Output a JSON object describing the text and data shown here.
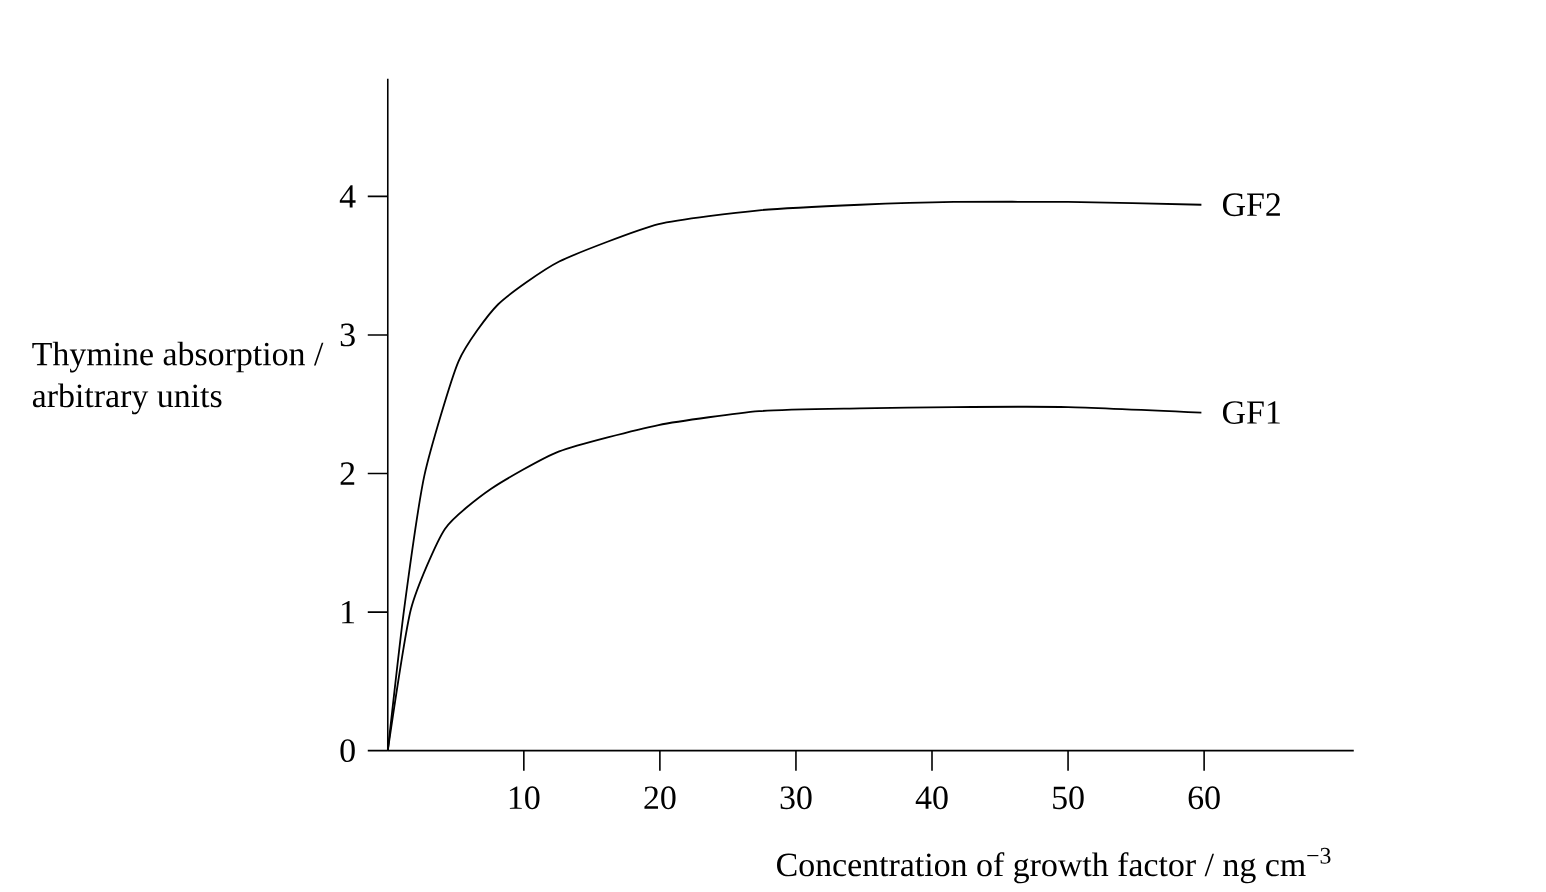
{
  "chart_data": {
    "type": "line",
    "xlabel": "Concentration of growth factor / ng cm$^{−3}$",
    "ylabel": "Thymine absorption / arbitrary units",
    "xlim": [
      0,
      71
    ],
    "ylim": [
      0,
      4.85
    ],
    "xticks": [
      10,
      20,
      30,
      40,
      50,
      60
    ],
    "yticks": [
      0,
      1,
      2,
      3,
      4
    ],
    "marker": "none",
    "line_style": "solid",
    "series": [
      {
        "name": "GF2",
        "color": "#000000",
        "x": [
          0,
          1.2,
          2.7,
          5.2,
          8.1,
          12.6,
          19.9,
          27.3,
          34.7,
          41.6,
          50,
          59.8
        ],
        "values": [
          0,
          1.02,
          1.99,
          2.81,
          3.22,
          3.53,
          3.8,
          3.9,
          3.94,
          3.96,
          3.96,
          3.94
        ]
      },
      {
        "name": "GF1",
        "color": "#000000",
        "x": [
          0,
          1.7,
          4.2,
          7.6,
          12.6,
          19.9,
          27.3,
          34.7,
          41.6,
          50,
          59.8
        ],
        "values": [
          0,
          1.02,
          1.6,
          1.89,
          2.16,
          2.35,
          2.45,
          2.47,
          2.48,
          2.48,
          2.44
        ]
      }
    ]
  }
}
